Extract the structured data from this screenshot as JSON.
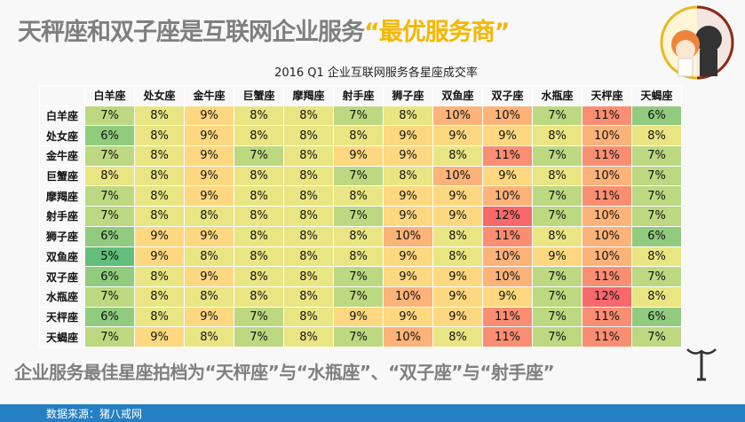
{
  "header": {
    "title_main": "天秤座和双子座是互联网企业服务",
    "title_highlight": "“最优服务商”",
    "highlight_color": "#f5b700"
  },
  "chart_data": {
    "type": "heatmap",
    "title": "2016 Q1  企业互联网服务各星座成交率",
    "columns": [
      "白羊座",
      "处女座",
      "金牛座",
      "巨蟹座",
      "摩羯座",
      "射手座",
      "狮子座",
      "双鱼座",
      "双子座",
      "水瓶座",
      "天枰座",
      "天蝎座"
    ],
    "rows": [
      "白羊座",
      "处女座",
      "金牛座",
      "巨蟹座",
      "摩羯座",
      "射手座",
      "狮子座",
      "双鱼座",
      "双子座",
      "水瓶座",
      "天枰座",
      "天蝎座"
    ],
    "unit": "%",
    "values": [
      [
        7,
        8,
        9,
        8,
        8,
        7,
        8,
        10,
        10,
        7,
        11,
        6
      ],
      [
        6,
        8,
        9,
        8,
        8,
        8,
        9,
        9,
        9,
        8,
        10,
        8
      ],
      [
        7,
        8,
        9,
        7,
        8,
        9,
        9,
        8,
        11,
        7,
        11,
        7
      ],
      [
        8,
        8,
        9,
        8,
        8,
        7,
        8,
        10,
        9,
        8,
        10,
        7
      ],
      [
        7,
        8,
        9,
        8,
        8,
        8,
        9,
        9,
        10,
        7,
        11,
        7
      ],
      [
        7,
        8,
        8,
        8,
        8,
        7,
        9,
        9,
        12,
        7,
        10,
        7
      ],
      [
        6,
        9,
        9,
        8,
        8,
        8,
        10,
        8,
        11,
        8,
        10,
        6
      ],
      [
        5,
        9,
        8,
        8,
        8,
        8,
        9,
        8,
        10,
        9,
        10,
        8
      ],
      [
        6,
        8,
        9,
        8,
        8,
        7,
        9,
        9,
        10,
        7,
        11,
        7
      ],
      [
        7,
        8,
        8,
        8,
        8,
        7,
        10,
        9,
        9,
        7,
        12,
        8
      ],
      [
        6,
        8,
        9,
        7,
        8,
        9,
        9,
        9,
        11,
        7,
        11,
        6
      ],
      [
        7,
        9,
        8,
        7,
        8,
        7,
        10,
        8,
        11,
        7,
        11,
        7
      ]
    ],
    "color_scale": {
      "low": "#63be7b",
      "mid": "#ffeb84",
      "high": "#f8696b"
    }
  },
  "conclusion": "企业服务最佳星座拍档为“天枰座”与“水瓶座”、“双子座”与“射手座”",
  "footer": {
    "source": "数据来源：猪八戒网",
    "color": "#2580c3"
  }
}
